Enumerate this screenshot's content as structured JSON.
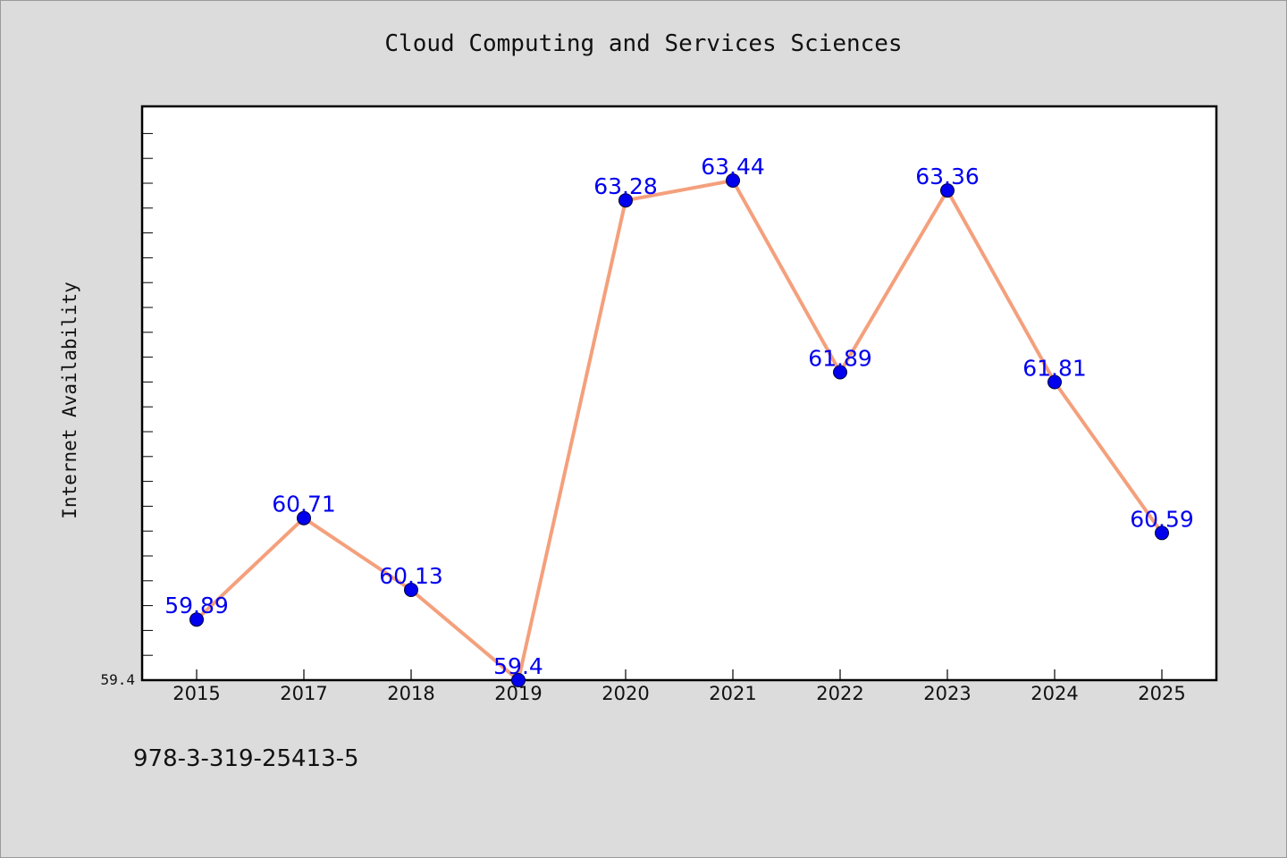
{
  "chart_data": {
    "type": "line",
    "title": "Cloud Computing and Services Sciences",
    "xlabel": "",
    "ylabel": "Internet Availability",
    "categories": [
      "2015",
      "2017",
      "2018",
      "2019",
      "2020",
      "2021",
      "2022",
      "2023",
      "2024",
      "2025"
    ],
    "series": [
      {
        "values": [
          59.89,
          60.71,
          60.13,
          59.4,
          63.28,
          63.44,
          61.89,
          63.36,
          61.81,
          60.59
        ]
      }
    ],
    "data_labels": [
      "59.89",
      "60.71",
      "60.13",
      "59.4",
      "63.28",
      "63.44",
      "61.89",
      "63.36",
      "61.81",
      "60.59"
    ],
    "ylim": [
      59.4,
      64.04
    ],
    "y_tick_label": "59.4",
    "grid": false,
    "legend": "none",
    "colors": {
      "line": "#f4a07c",
      "marker": "#0000ee",
      "data_label": "#0000ee",
      "background": "#dcdcdc",
      "plot_background": "#ffffff"
    }
  },
  "footer": {
    "isbn": "978-3-319-25413-5"
  }
}
